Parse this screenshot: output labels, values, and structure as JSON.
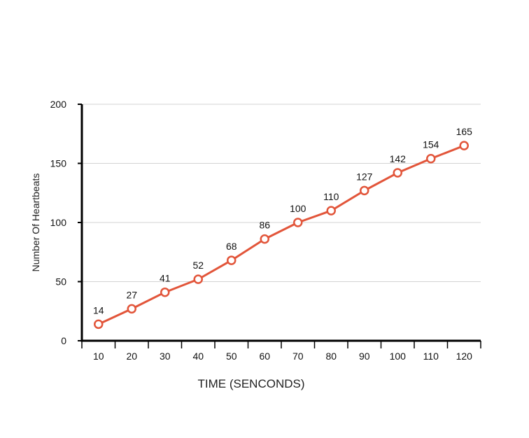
{
  "chart_data": {
    "type": "line",
    "title": "",
    "xlabel": "TIME (SENCONDS)",
    "ylabel": "Number Of Heartbeats",
    "x": [
      10,
      20,
      30,
      40,
      50,
      60,
      70,
      80,
      90,
      100,
      110,
      120
    ],
    "x_tick_labels": [
      "10",
      "20",
      "30",
      "40",
      "50",
      "60",
      "70",
      "80",
      "90",
      "100",
      "110",
      "120"
    ],
    "y_ticks": [
      0,
      50,
      100,
      150,
      200
    ],
    "y_tick_labels": [
      "0",
      "50",
      "100",
      "150",
      "200"
    ],
    "ylim": [
      0,
      200
    ],
    "grid": true,
    "series": [
      {
        "values": [
          14,
          27,
          41,
          52,
          68,
          86,
          100,
          110,
          127,
          142,
          154,
          165
        ],
        "data_labels": [
          "14",
          "27",
          "41",
          "52",
          "68",
          "86",
          "100",
          "110",
          "127",
          "142",
          "154",
          "165"
        ],
        "color": "#e2553a",
        "marker": "open-circle"
      }
    ],
    "colors": {
      "line": "#e2553a",
      "grid": "#d3d3d3",
      "axis": "#000000"
    }
  }
}
